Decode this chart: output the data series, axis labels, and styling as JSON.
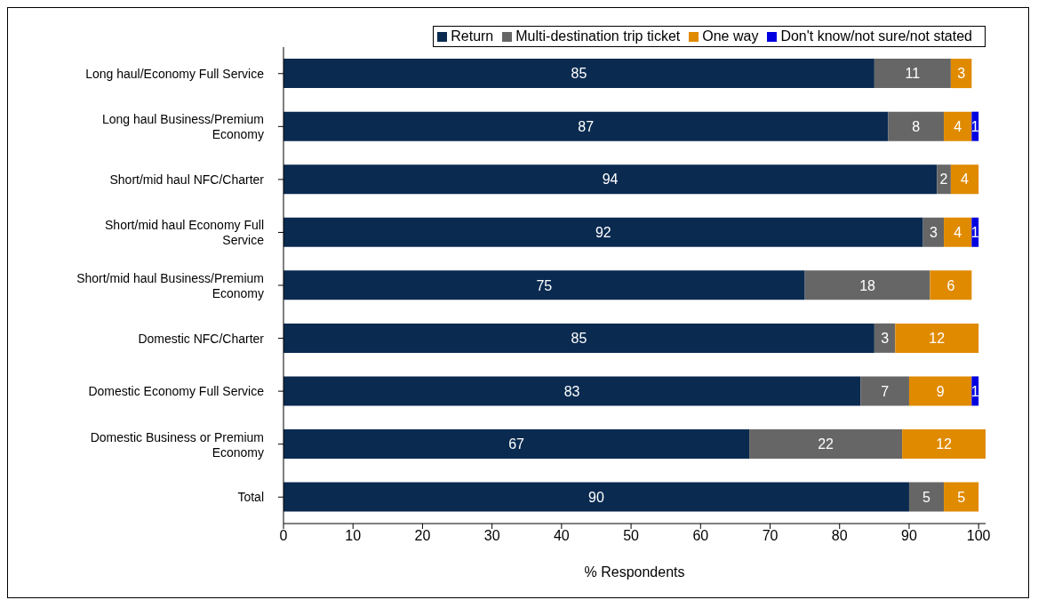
{
  "chart_data": {
    "type": "bar",
    "orientation": "horizontal",
    "stacked": true,
    "xlabel": "% Respondents",
    "categories": [
      "Long haul/Economy Full Service",
      "Long haul Business/Premium Economy",
      "Short/mid haul NFC/Charter",
      "Short/mid haul Economy Full Service",
      "Short/mid haul Business/Premium Economy",
      "Domestic NFC/Charter",
      "Domestic Economy Full Service",
      "Domestic Business or Premium Economy",
      "Total"
    ],
    "series": [
      {
        "name": "Return",
        "color": "#0a2a50",
        "values": [
          85,
          87,
          94,
          92,
          75,
          85,
          83,
          67,
          90
        ]
      },
      {
        "name": "Multi-destination trip ticket",
        "color": "#666666",
        "values": [
          11,
          8,
          2,
          3,
          18,
          3,
          7,
          22,
          5
        ]
      },
      {
        "name": "One way",
        "color": "#e08a00",
        "values": [
          3,
          4,
          4,
          4,
          6,
          12,
          9,
          12,
          5
        ]
      },
      {
        "name": "Don't know/not sure/not stated",
        "color": "#0000e0",
        "values": [
          null,
          1,
          null,
          1,
          null,
          null,
          1,
          null,
          null
        ]
      }
    ],
    "xlim": [
      0,
      101
    ],
    "xticks": [
      0,
      10,
      20,
      30,
      40,
      50,
      60,
      70,
      80,
      90,
      100
    ],
    "data_labels": true,
    "legend": "top right"
  }
}
